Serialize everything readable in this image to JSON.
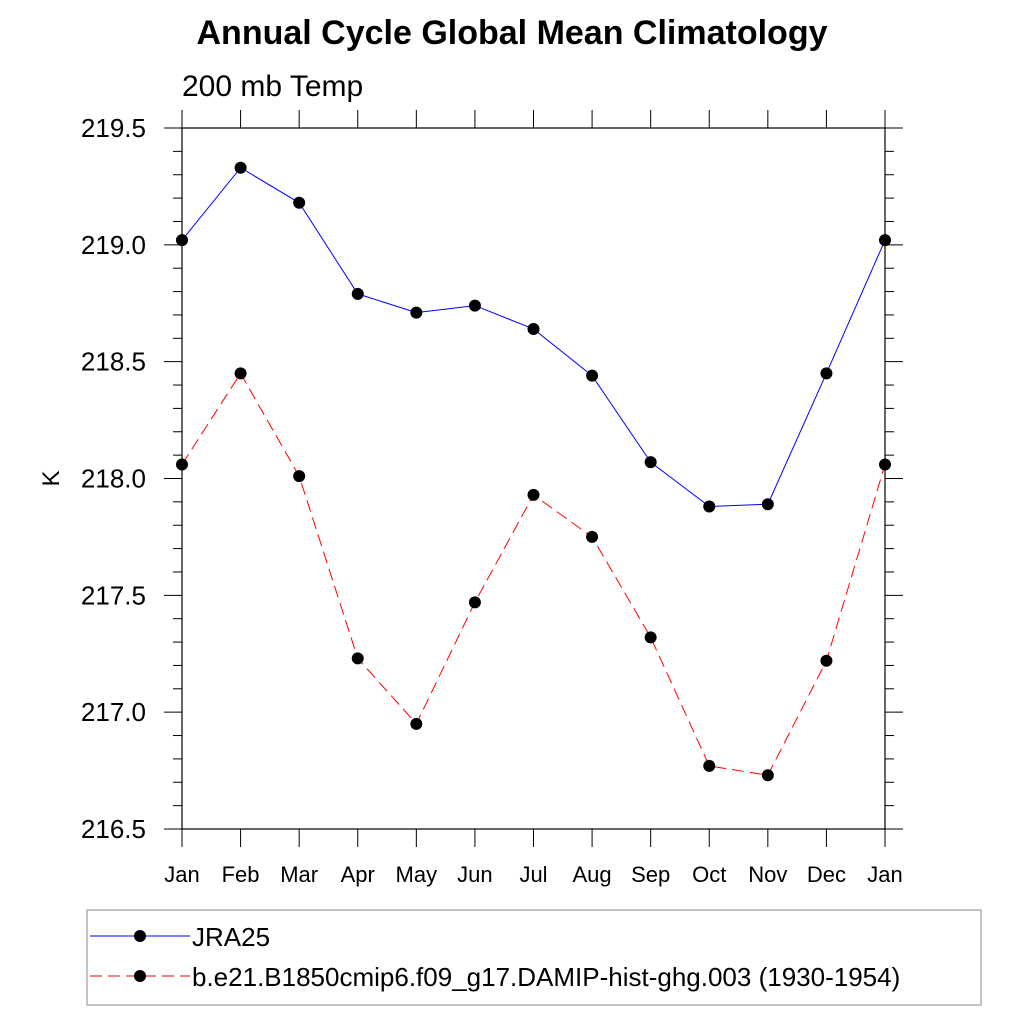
{
  "chart_data": {
    "type": "line",
    "title": "Annual Cycle Global Mean Climatology",
    "subtitle": "200 mb Temp",
    "xlabel": "",
    "ylabel": "K",
    "categories": [
      "Jan",
      "Feb",
      "Mar",
      "Apr",
      "May",
      "Jun",
      "Jul",
      "Aug",
      "Sep",
      "Oct",
      "Nov",
      "Dec",
      "Jan"
    ],
    "ylim": [
      216.5,
      219.5
    ],
    "yticks": [
      "216.5",
      "217.0",
      "217.5",
      "218.0",
      "218.5",
      "219.0",
      "219.5"
    ],
    "grid": false,
    "legend_position": "bottom",
    "series": [
      {
        "name": "JRA25",
        "color": "#0000ff",
        "dash": "solid",
        "values": [
          219.02,
          219.33,
          219.18,
          218.79,
          218.71,
          218.74,
          218.64,
          218.44,
          218.07,
          217.88,
          217.89,
          218.45,
          219.02
        ]
      },
      {
        "name": "b.e21.B1850cmip6.f09_g17.DAMIP-hist-ghg.003 (1930-1954)",
        "color": "#ff0000",
        "dash": "dashed",
        "values": [
          218.06,
          218.45,
          218.01,
          217.23,
          216.95,
          217.47,
          217.93,
          217.75,
          217.32,
          216.77,
          216.73,
          217.22,
          218.06
        ]
      }
    ]
  }
}
